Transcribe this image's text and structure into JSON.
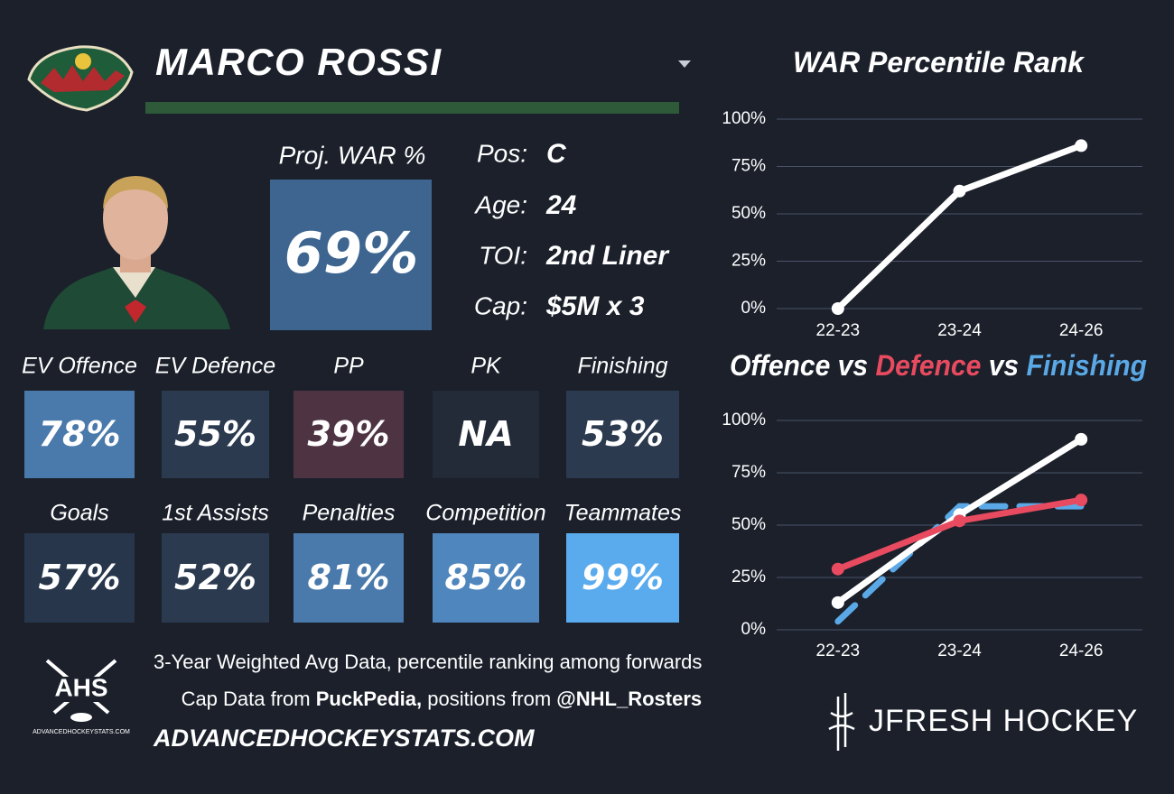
{
  "header": {
    "name": "MARCO ROSSI",
    "proj_label": "Proj. WAR %",
    "proj_value": "69%"
  },
  "info": [
    {
      "label": "Pos:",
      "value": "C"
    },
    {
      "label": "Age:",
      "value": "24"
    },
    {
      "label": "TOI:",
      "value": "2nd Liner"
    },
    {
      "label": "Cap:",
      "value": "$5M x 3"
    }
  ],
  "tiles": [
    [
      {
        "label": "EV Offence",
        "value": "78%",
        "color": "#4a7aab"
      },
      {
        "label": "EV Defence",
        "value": "55%",
        "color": "#2b3a4f"
      },
      {
        "label": "PP",
        "value": "39%",
        "color": "#4e3443"
      },
      {
        "label": "PK",
        "value": "NA",
        "color": "#232b38"
      },
      {
        "label": "Finishing",
        "value": "53%",
        "color": "#2b3a4f"
      }
    ],
    [
      {
        "label": "Goals",
        "value": "57%",
        "color": "#27364a"
      },
      {
        "label": "1st Assists",
        "value": "52%",
        "color": "#2b3a4f"
      },
      {
        "label": "Penalties",
        "value": "81%",
        "color": "#4a7aab"
      },
      {
        "label": "Competition",
        "value": "85%",
        "color": "#4f86bd"
      },
      {
        "label": "Teammates",
        "value": "99%",
        "color": "#5aabee"
      }
    ]
  ],
  "footer": {
    "note": "3-Year Weighted Avg Data, percentile ranking among forwards",
    "credits": [
      "Cap Data from ",
      "PuckPedia,",
      " positions from ",
      "@NHL_Rosters"
    ],
    "site": "ADVANCEDHOCKEYSTATS.COM",
    "logo_text": "AHS",
    "logo_caption": "ADVANCEDHOCKEYSTATS.COM",
    "brand": "JFRESH HOCKEY"
  },
  "chart_data": [
    {
      "type": "line",
      "title": [
        {
          "text": "WAR Percentile Rank",
          "color": "#ffffff"
        }
      ],
      "categories": [
        "22-23",
        "23-24",
        "24-26"
      ],
      "series": [
        {
          "name": "WAR",
          "color": "#ffffff",
          "dashed": false,
          "values": [
            0,
            62,
            86
          ]
        }
      ],
      "ylim": [
        0,
        100
      ],
      "yticks": [
        {
          "value": 0,
          "label": "0%"
        },
        {
          "value": 25,
          "label": "25%"
        },
        {
          "value": 50,
          "label": "50%"
        },
        {
          "value": 75,
          "label": "75%"
        },
        {
          "value": 100,
          "label": "100%"
        }
      ],
      "grid": true
    },
    {
      "type": "line",
      "title": [
        {
          "text": "Offence",
          "color": "#ffffff"
        },
        {
          "text": " vs ",
          "color": "#ffffff"
        },
        {
          "text": "Defence",
          "color": "#e84a5f"
        },
        {
          "text": " vs ",
          "color": "#ffffff"
        },
        {
          "text": "Finishing",
          "color": "#5aa9e6"
        }
      ],
      "categories": [
        "22-23",
        "23-24",
        "24-26"
      ],
      "series": [
        {
          "name": "Finishing",
          "color": "#5aa9e6",
          "dashed": true,
          "values": [
            4,
            59,
            59
          ]
        },
        {
          "name": "Offence",
          "color": "#ffffff",
          "dashed": false,
          "values": [
            13,
            55,
            91
          ]
        },
        {
          "name": "Defence",
          "color": "#e84a5f",
          "dashed": false,
          "values": [
            29,
            52,
            62
          ]
        }
      ],
      "ylim": [
        0,
        100
      ],
      "yticks": [
        {
          "value": 0,
          "label": "0%"
        },
        {
          "value": 25,
          "label": "25%"
        },
        {
          "value": 50,
          "label": "50%"
        },
        {
          "value": 75,
          "label": "75%"
        },
        {
          "value": 100,
          "label": "100%"
        }
      ],
      "grid": true
    }
  ]
}
